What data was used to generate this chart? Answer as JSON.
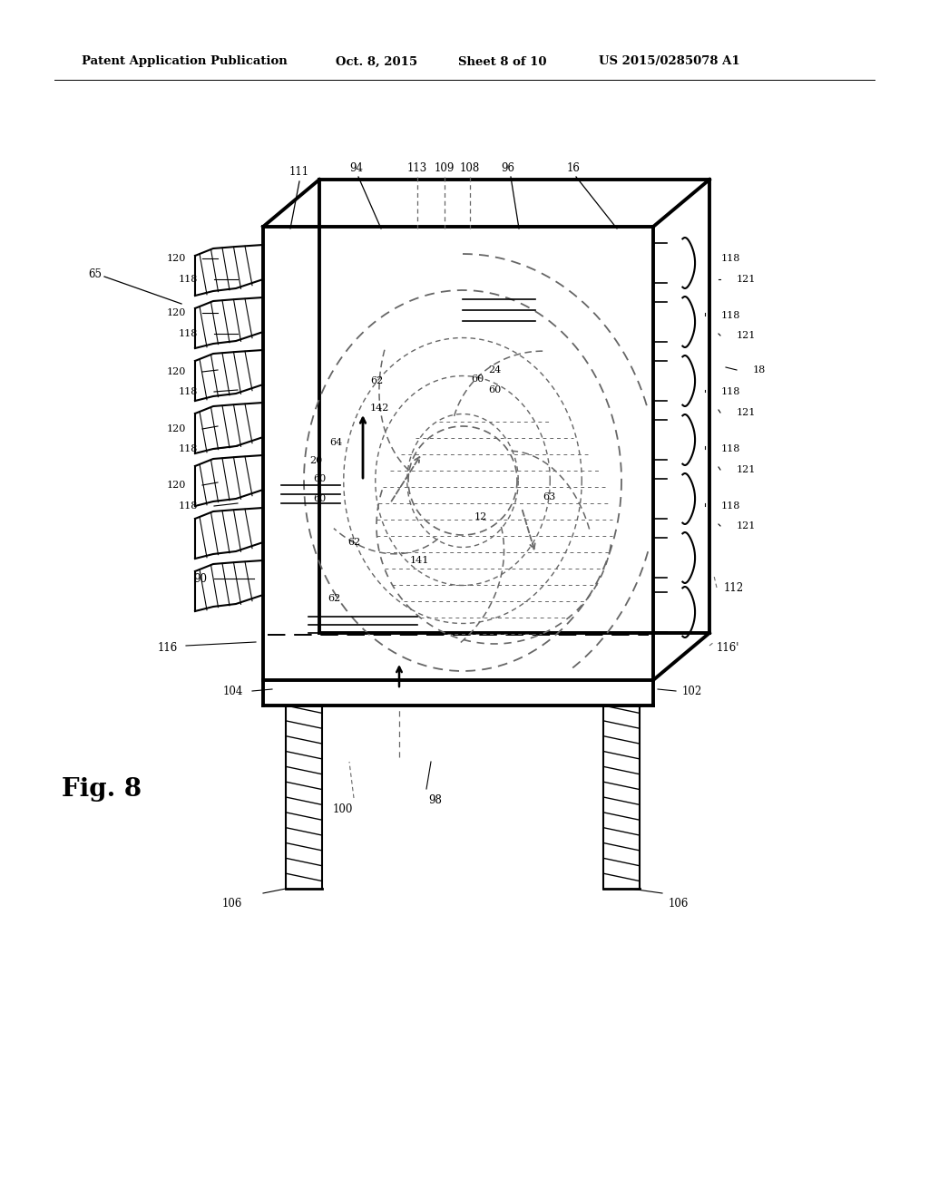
{
  "bg_color": "#ffffff",
  "line_color": "#000000",
  "dashed_color": "#666666",
  "header_text": "Patent Application Publication",
  "header_date": "Oct. 8, 2015",
  "header_sheet": "Sheet 8 of 10",
  "header_patent": "US 2015/0285078 A1",
  "fig_label": "Fig. 8"
}
